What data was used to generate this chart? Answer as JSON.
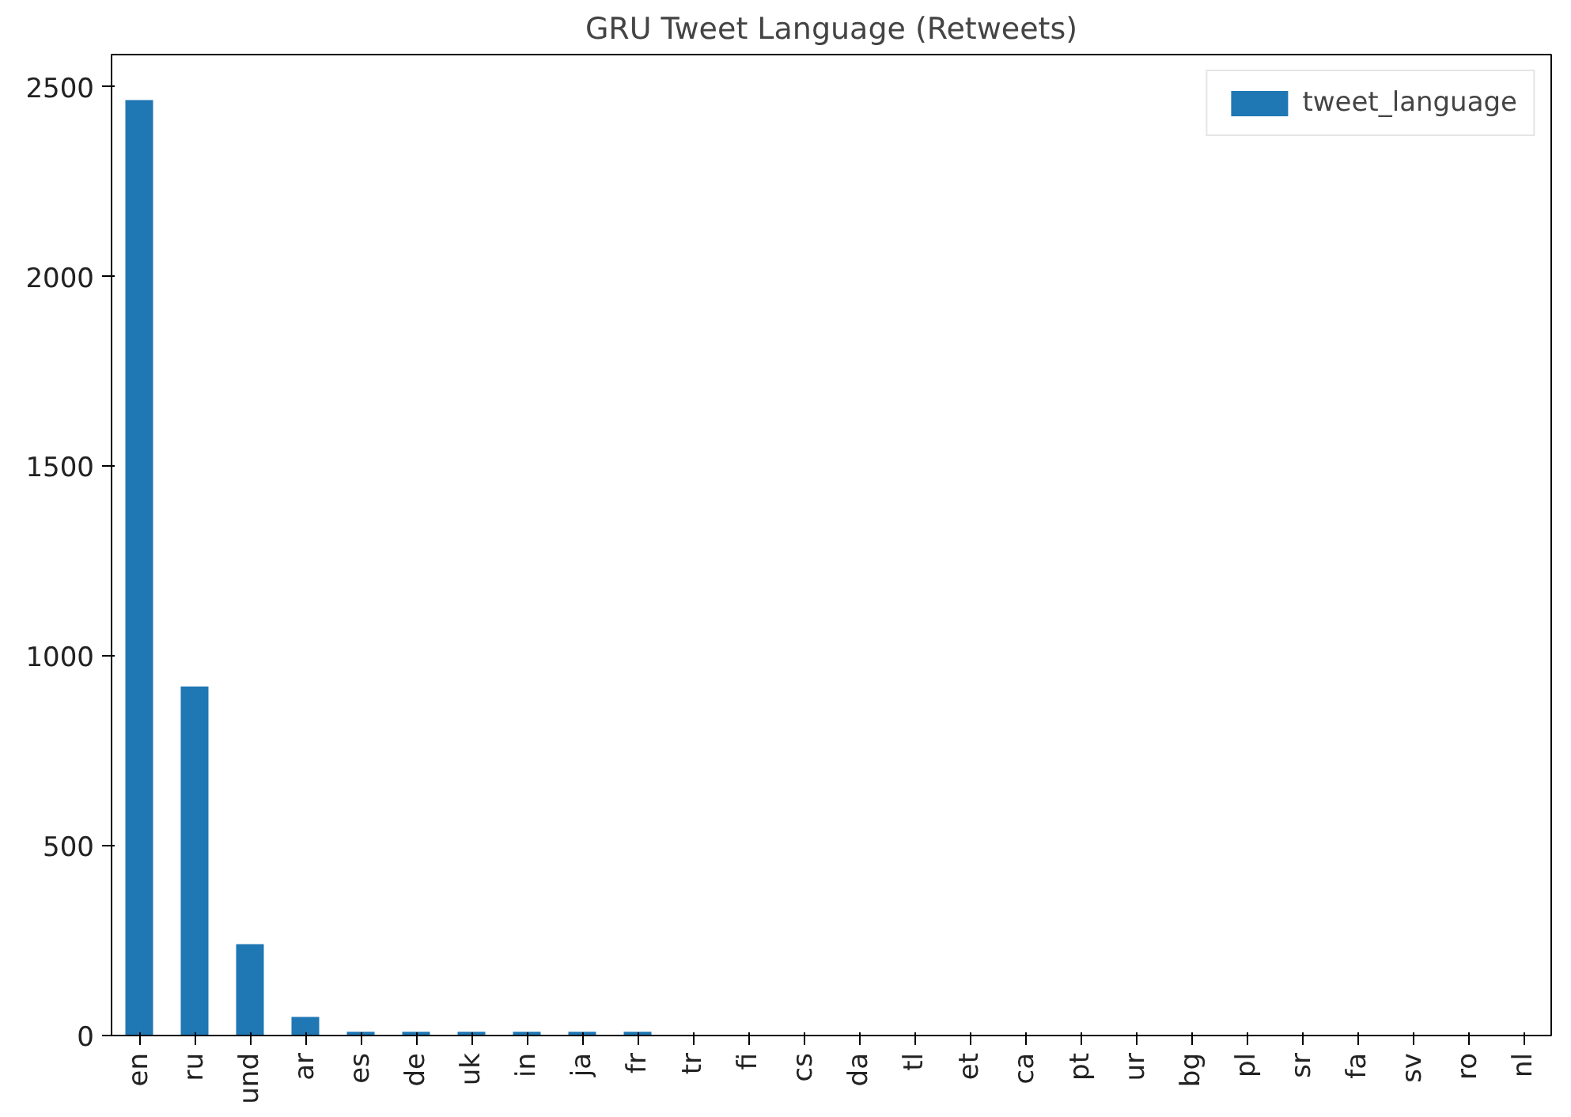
{
  "chart_data": {
    "type": "bar",
    "title": "GRU Tweet Language (Retweets)",
    "categories": [
      "en",
      "ru",
      "und",
      "ar",
      "es",
      "de",
      "uk",
      "in",
      "ja",
      "fr",
      "tr",
      "fi",
      "cs",
      "da",
      "tl",
      "et",
      "ca",
      "pt",
      "ur",
      "bg",
      "pl",
      "sr",
      "fa",
      "sv",
      "ro",
      "nl"
    ],
    "series": [
      {
        "name": "tweet_language",
        "color": "#1f77b4",
        "values": [
          2465,
          920,
          241,
          49,
          10,
          10,
          10,
          10,
          10,
          10,
          0,
          0,
          0,
          0,
          0,
          0,
          0,
          0,
          0,
          0,
          0,
          0,
          0,
          0,
          0,
          0
        ]
      }
    ],
    "ylim": [
      0,
      2585
    ],
    "yticks": [
      0,
      500,
      1000,
      1500,
      2000,
      2500
    ],
    "grid": false,
    "legend": "top right"
  }
}
